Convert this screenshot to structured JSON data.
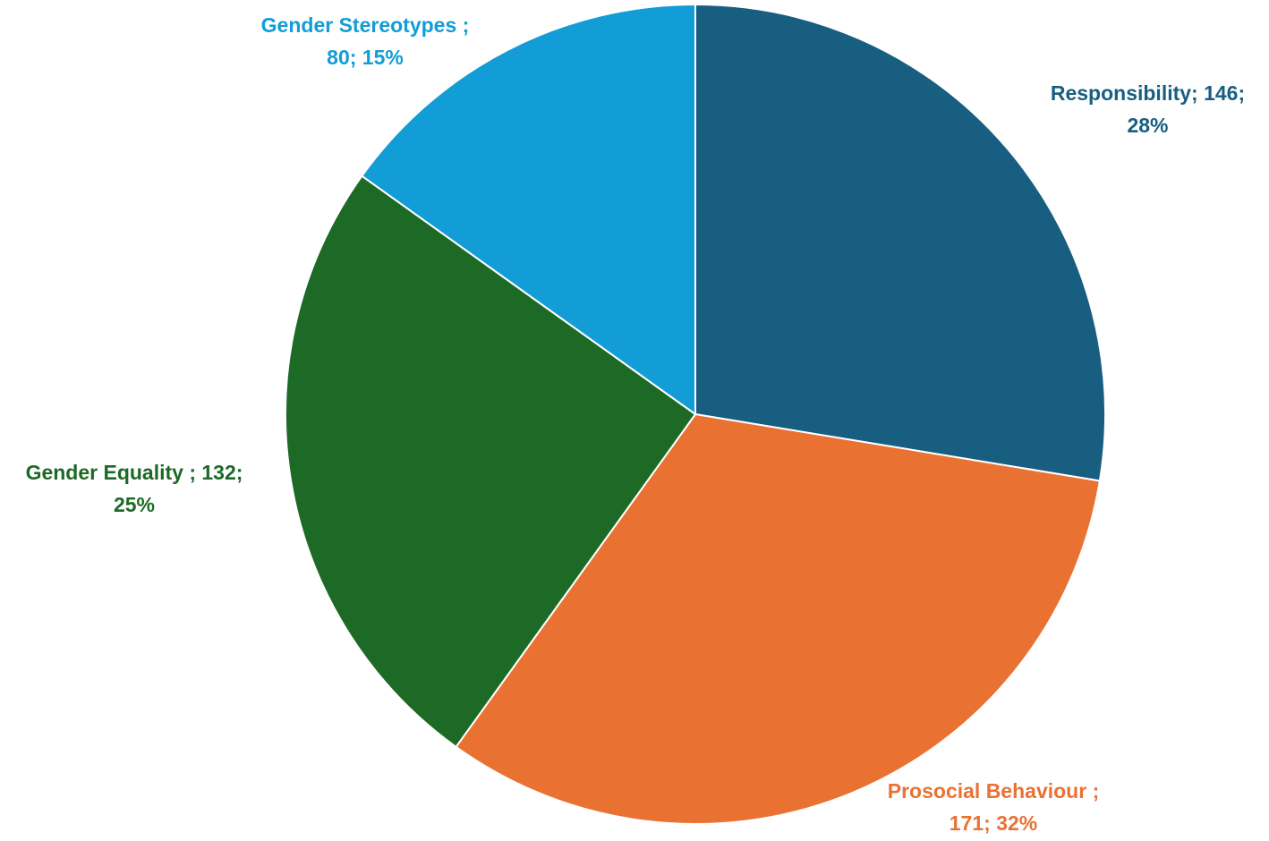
{
  "chart_data": {
    "type": "pie",
    "start_angle_deg": 0,
    "direction": "clockwise",
    "slices": [
      {
        "name": "Responsibility",
        "value": 146,
        "percent": "28%",
        "color": "#185E81",
        "label_line1": "Responsibility; 146;",
        "label_line2": "28%"
      },
      {
        "name": "Prosocial Behaviour",
        "value": 171,
        "percent": "32%",
        "color": "#E97233",
        "label_line1": "Prosocial Behaviour ;",
        "label_line2": "171; 32%"
      },
      {
        "name": "Gender Equality",
        "value": 132,
        "percent": "25%",
        "color": "#1C6A26",
        "label_line1": "Gender Equality ; 132;",
        "label_line2": "25%"
      },
      {
        "name": "Gender Stereotypes",
        "value": 80,
        "percent": "15%",
        "color": "#129DD6",
        "label_line1": "Gender Stereotypes ;",
        "label_line2": "80; 15%"
      }
    ],
    "legend": "none",
    "slice_border_color": "#ffffff"
  }
}
